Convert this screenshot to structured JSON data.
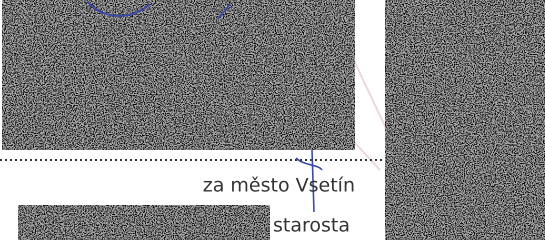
{
  "signature_block": {
    "caption": "za město Vsetín",
    "role": "starosta"
  }
}
